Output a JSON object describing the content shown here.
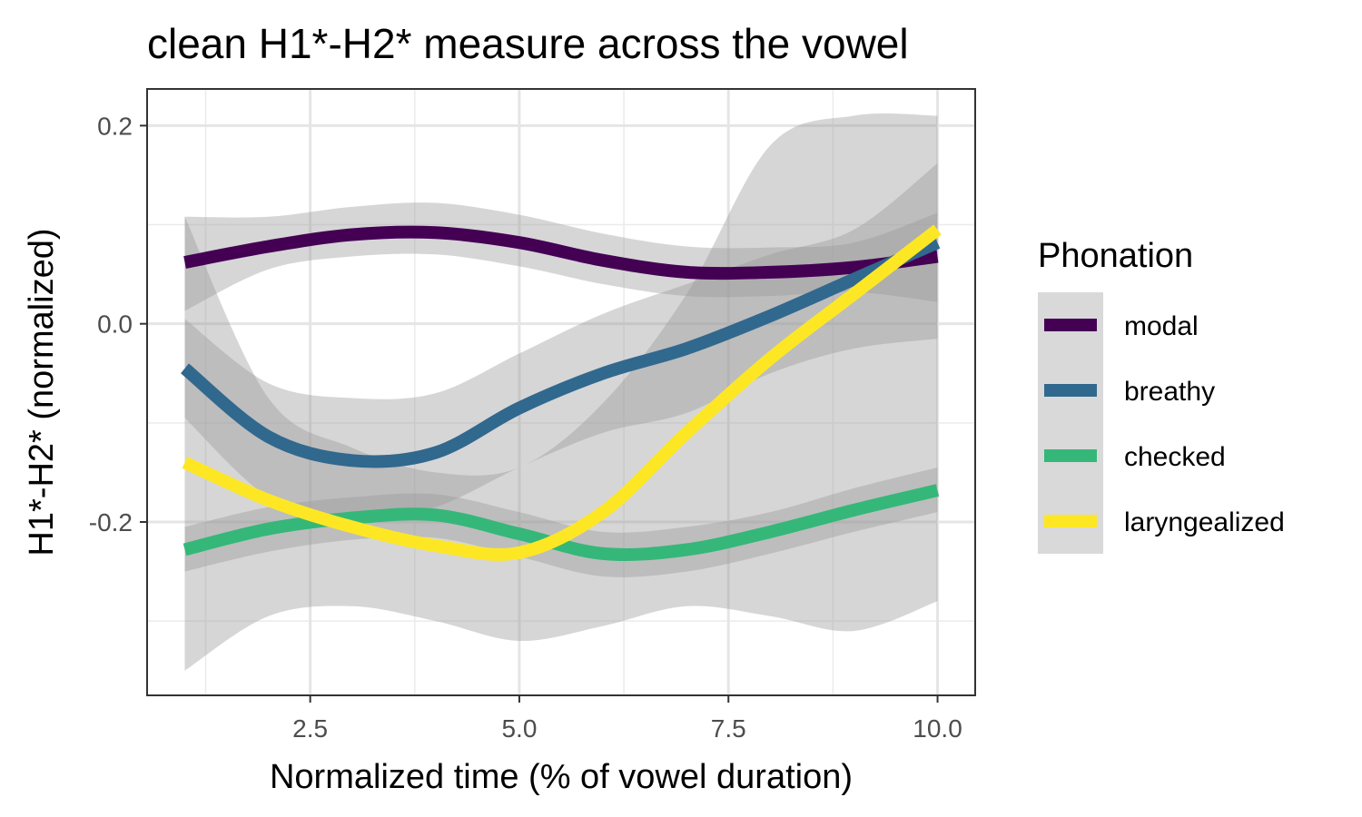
{
  "chart_data": {
    "type": "line",
    "title": "clean H1*-H2* measure across the vowel",
    "xlabel": "Normalized time (% of vowel duration)",
    "ylabel": "H1*-H2* (normalized)",
    "xlim": [
      0.55,
      10.45
    ],
    "ylim": [
      -0.375,
      0.237
    ],
    "xticks": [
      2.5,
      5.0,
      7.5,
      10.0
    ],
    "xtick_labels": [
      "2.5",
      "5.0",
      "7.5",
      "10.0"
    ],
    "yticks": [
      -0.2,
      0.0,
      0.2
    ],
    "ytick_labels": [
      "-0.2",
      "0.0",
      "0.2"
    ],
    "grid": true,
    "legend": {
      "title": "Phonation",
      "position": "right"
    },
    "confidence_band_color": "#999999",
    "series": [
      {
        "name": "modal",
        "color": "#440154",
        "x": [
          1,
          2,
          3,
          4,
          5,
          6,
          7,
          8,
          9,
          10
        ],
        "y": [
          0.062,
          0.078,
          0.09,
          0.092,
          0.082,
          0.064,
          0.052,
          0.052,
          0.057,
          0.068
        ],
        "lower": [
          0.013,
          0.055,
          0.068,
          0.07,
          0.058,
          0.04,
          0.028,
          0.028,
          0.032,
          0.022
        ],
        "upper": [
          0.108,
          0.108,
          0.118,
          0.122,
          0.11,
          0.091,
          0.078,
          0.077,
          0.082,
          0.112
        ]
      },
      {
        "name": "breathy",
        "color": "#31688E",
        "x": [
          1,
          2,
          3,
          4,
          5,
          6,
          7,
          8,
          9,
          10
        ],
        "y": [
          -0.045,
          -0.114,
          -0.138,
          -0.13,
          -0.085,
          -0.05,
          -0.025,
          0.008,
          0.045,
          0.082
        ],
        "lower": [
          -0.095,
          -0.175,
          -0.2,
          -0.185,
          -0.145,
          -0.11,
          -0.09,
          -0.05,
          -0.025,
          -0.015
        ],
        "upper": [
          0.005,
          -0.06,
          -0.075,
          -0.07,
          -0.03,
          0.01,
          0.04,
          0.07,
          0.095,
          0.162
        ]
      },
      {
        "name": "checked",
        "color": "#35B779",
        "x": [
          1,
          2,
          3,
          4,
          5,
          6,
          7,
          8,
          9,
          10
        ],
        "y": [
          -0.228,
          -0.207,
          -0.196,
          -0.193,
          -0.212,
          -0.232,
          -0.228,
          -0.21,
          -0.188,
          -0.168
        ],
        "lower": [
          -0.25,
          -0.23,
          -0.218,
          -0.216,
          -0.235,
          -0.255,
          -0.25,
          -0.232,
          -0.21,
          -0.19
        ],
        "upper": [
          -0.205,
          -0.185,
          -0.175,
          -0.172,
          -0.19,
          -0.21,
          -0.205,
          -0.19,
          -0.166,
          -0.145
        ]
      },
      {
        "name": "laryngealized",
        "color": "#FDE725",
        "x": [
          1,
          2,
          3,
          4,
          5,
          6,
          7,
          8,
          9,
          10
        ],
        "y": [
          -0.14,
          -0.178,
          -0.205,
          -0.224,
          -0.231,
          -0.19,
          -0.11,
          -0.035,
          0.03,
          0.095
        ],
        "lower": [
          -0.35,
          -0.295,
          -0.285,
          -0.3,
          -0.32,
          -0.305,
          -0.285,
          -0.295,
          -0.31,
          -0.28
        ],
        "upper": [
          0.108,
          -0.075,
          -0.125,
          -0.15,
          -0.145,
          -0.08,
          0.03,
          0.18,
          0.21,
          0.21
        ]
      }
    ]
  }
}
